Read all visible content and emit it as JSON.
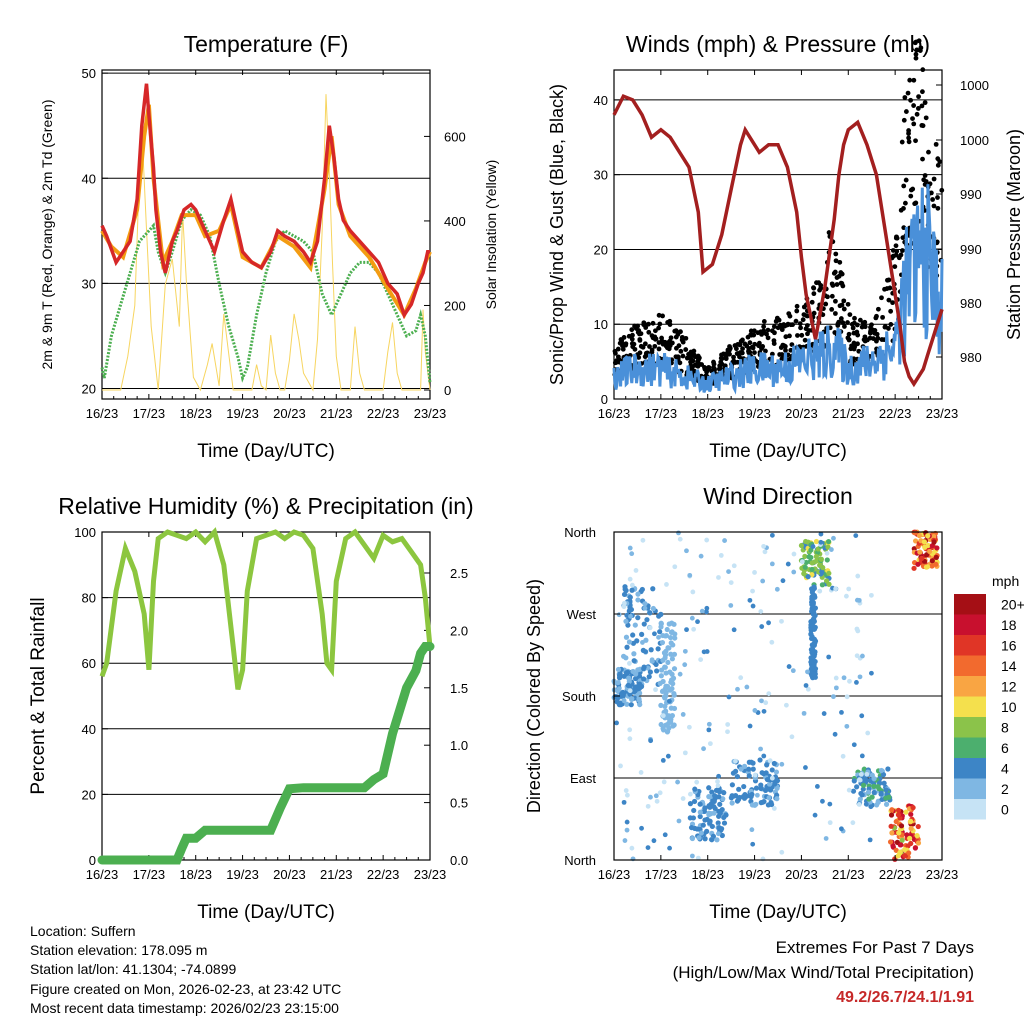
{
  "chart_data": [
    {
      "type": "line",
      "title": "Temperature (F)",
      "xlabel": "Time (Day/UTC)",
      "ylabel": "2m & 9m T (Red, Orange) & 2m Td (Green)",
      "y2label": "Solar Insolation (Yellow)",
      "x_ticks": [
        "16/23",
        "17/23",
        "18/23",
        "19/23",
        "20/23",
        "21/23",
        "22/23",
        "23/23"
      ],
      "y_ticks": [
        20,
        30,
        40,
        50
      ],
      "y2_ticks": [
        0,
        200,
        400,
        600
      ],
      "ylim": [
        19,
        50.3
      ],
      "y2lim": [
        0,
        750
      ],
      "xlim": [
        0,
        7
      ],
      "grid_y": [
        20,
        30,
        40,
        50
      ],
      "series": [
        {
          "name": "2m T",
          "color": "#d62728",
          "x": [
            0,
            0.1,
            0.3,
            0.45,
            0.6,
            0.75,
            0.85,
            0.95,
            1.0,
            1.1,
            1.15,
            1.25,
            1.35,
            1.5,
            1.6,
            1.75,
            1.9,
            2.0,
            2.2,
            2.4,
            2.6,
            2.75,
            2.85,
            3.0,
            3.2,
            3.4,
            3.6,
            3.75,
            3.9,
            4.1,
            4.3,
            4.45,
            4.6,
            4.75,
            4.85,
            4.95,
            5.05,
            5.15,
            5.3,
            5.5,
            5.7,
            5.9,
            6.1,
            6.3,
            6.45,
            6.6,
            6.75,
            6.85,
            6.95,
            7.0
          ],
          "values": [
            35.5,
            34.5,
            32,
            33,
            34,
            38,
            45,
            49,
            46,
            41,
            37,
            33,
            31,
            34,
            35,
            37,
            37.5,
            37,
            35,
            33,
            36,
            38,
            36,
            33,
            32,
            31.5,
            33,
            35,
            34.5,
            34,
            33,
            32,
            34,
            40,
            45,
            42,
            38,
            36,
            35,
            34,
            33,
            32,
            30,
            29,
            27,
            28,
            30,
            31,
            33,
            33
          ]
        },
        {
          "name": "9m T",
          "color": "#f39c12",
          "x": [
            0,
            0.2,
            0.45,
            0.75,
            0.9,
            1.0,
            1.1,
            1.3,
            1.5,
            1.7,
            2.0,
            2.2,
            2.5,
            2.75,
            3.0,
            3.4,
            3.75,
            4.1,
            4.45,
            4.75,
            4.9,
            5.05,
            5.3,
            5.7,
            6.1,
            6.45,
            6.7,
            6.9,
            7.0
          ],
          "values": [
            35,
            33.5,
            32.5,
            37,
            44,
            47,
            40,
            32,
            34,
            36.5,
            36.5,
            34.5,
            35,
            37.5,
            32.5,
            31.5,
            34.5,
            33.5,
            31.5,
            39,
            44,
            37.5,
            34.5,
            32.5,
            29.5,
            27,
            29.5,
            32,
            33
          ]
        },
        {
          "name": "2m Td",
          "color": "#4caf50",
          "x": [
            0,
            0.05,
            0.2,
            0.4,
            0.6,
            0.8,
            1.0,
            1.1,
            1.2,
            1.35,
            1.5,
            1.7,
            1.9,
            2.1,
            2.3,
            2.5,
            2.7,
            2.9,
            3.0,
            3.1,
            3.3,
            3.5,
            3.7,
            3.9,
            4.1,
            4.3,
            4.4,
            4.5,
            4.7,
            4.9,
            5.1,
            5.3,
            5.5,
            5.7,
            5.9,
            6.1,
            6.3,
            6.5,
            6.7,
            6.8,
            6.9,
            7.0
          ],
          "values": [
            22,
            21,
            25,
            28,
            31,
            34,
            35,
            35.5,
            33,
            31,
            33,
            36,
            37,
            36.5,
            34.5,
            30,
            26,
            23,
            21,
            22,
            27,
            31,
            34,
            35,
            34.5,
            34,
            33.5,
            33,
            29,
            27,
            29,
            31,
            32,
            32,
            31,
            29,
            27,
            25,
            25.5,
            27,
            25,
            20.5
          ]
        },
        {
          "name": "Solar Insolation",
          "axis": "y2",
          "color": "#f7d560",
          "x": [
            0,
            0.4,
            0.55,
            0.7,
            0.78,
            0.85,
            0.95,
            1.05,
            1.2,
            1.35,
            1.5,
            1.65,
            1.72,
            1.8,
            1.95,
            2.1,
            2.25,
            2.35,
            2.5,
            2.6,
            2.7,
            2.8,
            3.2,
            3.3,
            3.4,
            3.5,
            3.6,
            3.7,
            3.8,
            3.9,
            4.0,
            4.1,
            4.2,
            4.3,
            4.5,
            4.6,
            4.7,
            4.78,
            4.85,
            4.92,
            5.0,
            5.1,
            5.3,
            5.4,
            5.5,
            5.6,
            5.7,
            6.0,
            6.1,
            6.2,
            6.3,
            6.4,
            6.8,
            6.85,
            6.9,
            7.0
          ],
          "values": [
            0,
            0,
            80,
            200,
            450,
            620,
            380,
            150,
            0,
            250,
            310,
            150,
            420,
            260,
            30,
            0,
            60,
            110,
            10,
            180,
            90,
            0,
            0,
            60,
            10,
            0,
            130,
            40,
            0,
            0,
            70,
            180,
            120,
            40,
            0,
            120,
            380,
            700,
            520,
            300,
            80,
            0,
            0,
            150,
            40,
            0,
            0,
            0,
            90,
            160,
            40,
            0,
            0,
            190,
            90,
            0
          ]
        }
      ]
    },
    {
      "type": "line",
      "title": "Winds (mph) & Pressure (mb)",
      "xlabel": "Time (Day/UTC)",
      "ylabel": "Sonic/Prop Wind & Gust (Blue, Black)",
      "y2label": "Station Pressure (Maroon)",
      "x_ticks": [
        "16/23",
        "17/23",
        "18/23",
        "19/23",
        "20/23",
        "21/23",
        "22/23",
        "23/23"
      ],
      "y_ticks": [
        0,
        10,
        20,
        30,
        40
      ],
      "y2_ticks": [
        "980",
        "980",
        "990",
        "990",
        "1000",
        "1000"
      ],
      "ylim": [
        0,
        44
      ],
      "grid_y": [
        0,
        10,
        20,
        30,
        40
      ],
      "xlim": [
        0,
        7
      ],
      "series": [
        {
          "name": "Station Pressure",
          "color": "#a31f1f",
          "x": [
            0,
            0.2,
            0.4,
            0.6,
            0.8,
            1.0,
            1.2,
            1.4,
            1.6,
            1.8,
            1.9,
            2.1,
            2.3,
            2.5,
            2.7,
            2.8,
            2.9,
            3.1,
            3.3,
            3.5,
            3.7,
            3.9,
            4.0,
            4.1,
            4.3,
            4.5,
            4.7,
            4.8,
            4.9,
            5.0,
            5.2,
            5.4,
            5.6,
            5.8,
            6.0,
            6.1,
            6.2,
            6.3,
            6.4,
            6.5,
            6.6,
            6.7,
            6.8,
            6.9,
            7.0
          ],
          "values": [
            38,
            40.5,
            40,
            38,
            35,
            36,
            35,
            33,
            31,
            25,
            17,
            18,
            22,
            28,
            34,
            36,
            35,
            33,
            34,
            34,
            31,
            25,
            19,
            14,
            8,
            15,
            24,
            30,
            34,
            36,
            37,
            34,
            30,
            22,
            14,
            10,
            5,
            3,
            2,
            3,
            4,
            6,
            8,
            10,
            12
          ]
        },
        {
          "name": "Gust",
          "color": "#000000",
          "x": [
            0,
            0.5,
            1.0,
            1.5,
            1.8,
            2.0,
            2.5,
            3.0,
            3.5,
            4.0,
            4.5,
            4.6,
            4.8,
            5.0,
            5.3,
            5.6,
            5.9,
            6.1,
            6.2,
            6.3,
            6.4,
            6.5,
            6.6,
            6.7,
            6.9,
            7.0
          ],
          "values": [
            5,
            7,
            8,
            6,
            4,
            3,
            5,
            7,
            8,
            9,
            12,
            16,
            13,
            9,
            7,
            8,
            12,
            20,
            28,
            30,
            34,
            35,
            30,
            26,
            24,
            22
          ]
        },
        {
          "name": "Wind",
          "color": "#4a90d9",
          "x": [
            0,
            0.5,
            1.0,
            1.5,
            2.0,
            2.5,
            3.0,
            3.5,
            4.0,
            4.5,
            4.7,
            5.0,
            5.5,
            6.0,
            6.2,
            6.4,
            6.6,
            6.8,
            7.0
          ],
          "values": [
            3,
            4,
            4,
            3,
            2,
            3,
            4,
            4,
            5,
            6,
            7,
            4,
            5,
            7,
            14,
            17,
            20,
            16,
            12
          ]
        }
      ]
    },
    {
      "type": "line",
      "title": "Relative Humidity (%) & Precipitation (in)",
      "xlabel": "Time (Day/UTC)",
      "ylabel": "Percent & Total Rainfall",
      "x_ticks": [
        "16/23",
        "17/23",
        "18/23",
        "19/23",
        "20/23",
        "21/23",
        "22/23",
        "23/23"
      ],
      "y_ticks": [
        0,
        20,
        40,
        60,
        80,
        100
      ],
      "y2_ticks": [
        "0.0",
        "0.5",
        "1.0",
        "1.5",
        "2.0",
        "2.5"
      ],
      "ylim": [
        0,
        100
      ],
      "y2lim": [
        0,
        2.857
      ],
      "grid_y": [
        0,
        20,
        40,
        60,
        80,
        100
      ],
      "xlim": [
        0,
        7
      ],
      "series": [
        {
          "name": "Relative Humidity",
          "color": "#8cc63f",
          "x": [
            0,
            0.1,
            0.3,
            0.5,
            0.7,
            0.9,
            1.0,
            1.1,
            1.2,
            1.4,
            1.6,
            1.8,
            2.0,
            2.2,
            2.4,
            2.6,
            2.8,
            2.9,
            3.0,
            3.1,
            3.3,
            3.5,
            3.7,
            3.9,
            4.1,
            4.3,
            4.5,
            4.7,
            4.8,
            4.9,
            5.0,
            5.2,
            5.4,
            5.6,
            5.8,
            6.0,
            6.2,
            6.4,
            6.6,
            6.8,
            6.9,
            7.0
          ],
          "values": [
            56,
            60,
            82,
            95,
            88,
            75,
            58,
            85,
            98,
            100,
            99,
            98,
            100,
            97,
            100,
            90,
            65,
            52,
            58,
            82,
            98,
            99,
            100,
            98,
            100,
            99,
            95,
            75,
            60,
            58,
            85,
            98,
            100,
            96,
            92,
            99,
            97,
            98,
            94,
            90,
            80,
            65
          ]
        },
        {
          "name": "Total Rainfall",
          "axis": "y2",
          "color": "#4caf50",
          "x": [
            0,
            0.5,
            1.0,
            1.6,
            1.7,
            1.8,
            2.0,
            2.2,
            2.5,
            3.0,
            3.6,
            3.8,
            4.0,
            4.3,
            4.6,
            5.0,
            5.4,
            5.6,
            5.8,
            6.0,
            6.2,
            6.5,
            6.7,
            6.8,
            6.9,
            7.0
          ],
          "values": [
            0,
            0,
            0,
            0,
            0.1,
            0.19,
            0.19,
            0.26,
            0.26,
            0.26,
            0.26,
            0.45,
            0.62,
            0.63,
            0.63,
            0.63,
            0.63,
            0.63,
            0.7,
            0.75,
            1.1,
            1.5,
            1.65,
            1.8,
            1.86,
            1.86
          ]
        }
      ]
    },
    {
      "type": "scatter",
      "title": "Wind Direction",
      "xlabel": "Time (Day/UTC)",
      "ylabel": "Direction (Colored By Speed)",
      "x_ticks": [
        "16/23",
        "17/23",
        "18/23",
        "19/23",
        "20/23",
        "21/23",
        "22/23",
        "23/23"
      ],
      "y_ticks": [
        "North",
        "East",
        "South",
        "West",
        "North"
      ],
      "ylim": [
        0,
        360
      ],
      "xlim": [
        0,
        7
      ],
      "colorbar": {
        "unit": "mph",
        "labels": [
          "20+",
          "18",
          "16",
          "14",
          "12",
          "10",
          "8",
          "6",
          "4",
          "2",
          "0"
        ],
        "colors": [
          "#a50f15",
          "#c8102e",
          "#e03526",
          "#f26a2e",
          "#f9a543",
          "#f4e04d",
          "#8bc34a",
          "#4caf6e",
          "#3d85c6",
          "#7fb7e3",
          "#c6e3f5"
        ]
      },
      "clusters": [
        {
          "x": [
            0,
            0.6
          ],
          "y": [
            170,
            210
          ],
          "speed": [
            2,
            5
          ]
        },
        {
          "x": [
            0.2,
            1.0
          ],
          "y": [
            190,
            300
          ],
          "speed": [
            2,
            5
          ]
        },
        {
          "x": [
            1.0,
            1.3
          ],
          "y": [
            140,
            260
          ],
          "speed": [
            1,
            3
          ]
        },
        {
          "x": [
            1.6,
            2.4
          ],
          "y": [
            20,
            80
          ],
          "speed": [
            2,
            5
          ]
        },
        {
          "x": [
            2.5,
            3.5
          ],
          "y": [
            60,
            110
          ],
          "speed": [
            2,
            5
          ]
        },
        {
          "x": [
            4.0,
            4.6
          ],
          "y": [
            300,
            350
          ],
          "speed": [
            3,
            10
          ]
        },
        {
          "x": [
            4.2,
            4.3
          ],
          "y": [
            200,
            300
          ],
          "speed": [
            3,
            5
          ]
        },
        {
          "x": [
            5.1,
            5.9
          ],
          "y": [
            60,
            100
          ],
          "speed": [
            2,
            6
          ]
        },
        {
          "x": [
            5.9,
            6.5
          ],
          "y": [
            0,
            60
          ],
          "speed": [
            8,
            20
          ]
        },
        {
          "x": [
            6.4,
            6.9
          ],
          "y": [
            320,
            360
          ],
          "speed": [
            10,
            20
          ]
        }
      ]
    }
  ],
  "info": {
    "location": "Location: Suffern",
    "elevation": "Station elevation: 178.095 m",
    "latlon": "Station lat/lon: 41.1304; -74.0899",
    "created": "Figure created on Mon, 2026-02-23, at 23:42 UTC",
    "recent": "Most recent data timestamp: 2026/02/23 23:15:00"
  },
  "extremes": {
    "line1": "Extremes For Past 7 Days",
    "line2": "(High/Low/Max Wind/Total Precipitation)",
    "values": "49.2/26.7/24.1/1.91"
  }
}
